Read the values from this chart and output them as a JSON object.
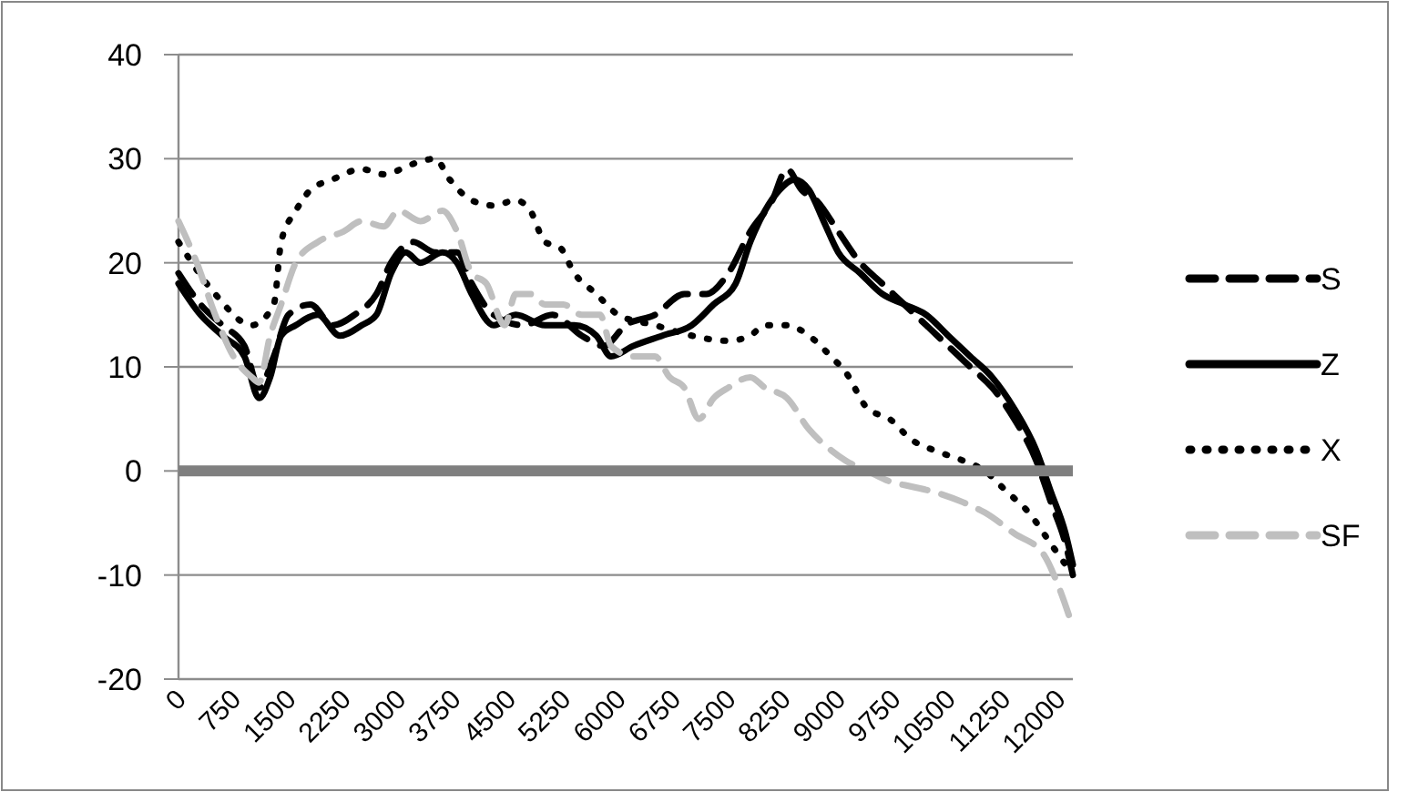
{
  "chart_data": {
    "type": "line",
    "xlim": [
      0,
      12200
    ],
    "xticks": [
      0,
      750,
      1500,
      2250,
      3000,
      3750,
      4500,
      5250,
      6000,
      6750,
      7500,
      8250,
      9000,
      9750,
      10500,
      11250,
      12000
    ],
    "ylim": [
      -20,
      40
    ],
    "yticks": [
      -20,
      -10,
      0,
      10,
      20,
      30,
      40
    ],
    "grid": "y",
    "legend": "right",
    "ref_lines": [
      {
        "axis": "y",
        "value": 0,
        "color": "#7f7f7f"
      }
    ],
    "series": [
      {
        "name": "S",
        "color": "#000000",
        "line_style": "dashed",
        "x": [
          0,
          300,
          600,
          900,
          1100,
          1300,
          1500,
          1800,
          2100,
          2400,
          2700,
          2900,
          3200,
          3500,
          3800,
          4000,
          4300,
          4700,
          5100,
          5500,
          5800,
          6100,
          6500,
          6900,
          7200,
          7500,
          7800,
          8100,
          8300,
          8500,
          8700,
          9000,
          9300,
          9600,
          9900,
          10200,
          10500,
          10800,
          11100,
          11400,
          11700,
          11900,
          12100,
          12200
        ],
        "values": [
          19,
          16,
          14,
          12,
          8,
          11,
          15,
          16,
          14,
          15,
          17,
          20,
          22,
          21,
          21,
          18,
          15,
          14,
          15,
          13,
          12,
          14,
          15,
          17,
          17,
          19,
          23,
          26,
          29,
          27,
          26,
          23,
          20,
          18,
          16,
          14,
          12,
          10,
          8,
          5,
          1,
          -3,
          -7,
          -10
        ]
      },
      {
        "name": "Z",
        "color": "#000000",
        "line_style": "solid",
        "x": [
          0,
          300,
          600,
          900,
          1100,
          1250,
          1400,
          1600,
          1900,
          2200,
          2500,
          2700,
          2900,
          3100,
          3300,
          3600,
          3800,
          4000,
          4300,
          4600,
          5000,
          5400,
          5700,
          5900,
          6200,
          6600,
          7000,
          7300,
          7600,
          7800,
          8000,
          8200,
          8400,
          8600,
          8800,
          9000,
          9300,
          9600,
          9900,
          10200,
          10500,
          10800,
          11100,
          11400,
          11700,
          11900,
          12100,
          12200
        ],
        "values": [
          18,
          15,
          13,
          11,
          7,
          9,
          13,
          14,
          15,
          13,
          14,
          15,
          19,
          21,
          20,
          21,
          20,
          17,
          14,
          15,
          14,
          14,
          13,
          11,
          12,
          13,
          14,
          16,
          18,
          22,
          25,
          27,
          28,
          27,
          24,
          21,
          19,
          17,
          16,
          15,
          13,
          11,
          9,
          6,
          2,
          -2,
          -6,
          -9
        ]
      },
      {
        "name": "X",
        "color": "#000000",
        "line_style": "dotted",
        "x": [
          0,
          500,
          1000,
          1300,
          1400,
          1600,
          1800,
          2100,
          2500,
          2800,
          3200,
          3500,
          3700,
          4000,
          4300,
          4600,
          4800,
          5000,
          5200,
          5400,
          5700,
          6000,
          6500,
          7000,
          7500,
          7800,
          8000,
          8300,
          8600,
          8900,
          9100,
          9400,
          9700,
          10000,
          10300,
          10700,
          11000,
          11300,
          11600,
          11900,
          12100
        ],
        "values": [
          22,
          17,
          14,
          16,
          22,
          25,
          27,
          28,
          29,
          28.5,
          29.5,
          30,
          28,
          26,
          25.5,
          26,
          25,
          22,
          21.5,
          19,
          17,
          15,
          14,
          13,
          12.5,
          13,
          14,
          14,
          13,
          11,
          9.5,
          6,
          5,
          3,
          2,
          1,
          0,
          -2,
          -4,
          -7,
          -9
        ]
      },
      {
        "name": "SF",
        "color": "#bfbfbf",
        "line_style": "dashed",
        "x": [
          0,
          250,
          500,
          750,
          1000,
          1100,
          1250,
          1400,
          1600,
          1900,
          2250,
          2500,
          2800,
          3000,
          3300,
          3600,
          3800,
          4000,
          4200,
          4450,
          4600,
          4800,
          5000,
          5250,
          5500,
          5750,
          5900,
          6200,
          6500,
          6700,
          6900,
          7100,
          7300,
          7500,
          7800,
          8000,
          8300,
          8600,
          8900,
          9100,
          9400,
          9700,
          10000,
          10300,
          10700,
          11000,
          11400,
          11800,
          12000,
          12200
        ],
        "values": [
          24,
          20,
          15,
          11,
          9,
          8.5,
          13,
          16,
          20,
          22,
          23,
          24,
          23.5,
          25,
          24,
          25,
          23,
          19,
          18,
          14,
          17,
          17,
          16,
          16,
          15,
          15,
          12,
          11,
          11,
          9,
          8,
          5,
          7,
          8,
          9,
          8,
          7,
          4,
          2,
          1,
          0,
          -1,
          -1.5,
          -2,
          -3,
          -4,
          -6,
          -8,
          -11,
          -15
        ]
      }
    ]
  }
}
